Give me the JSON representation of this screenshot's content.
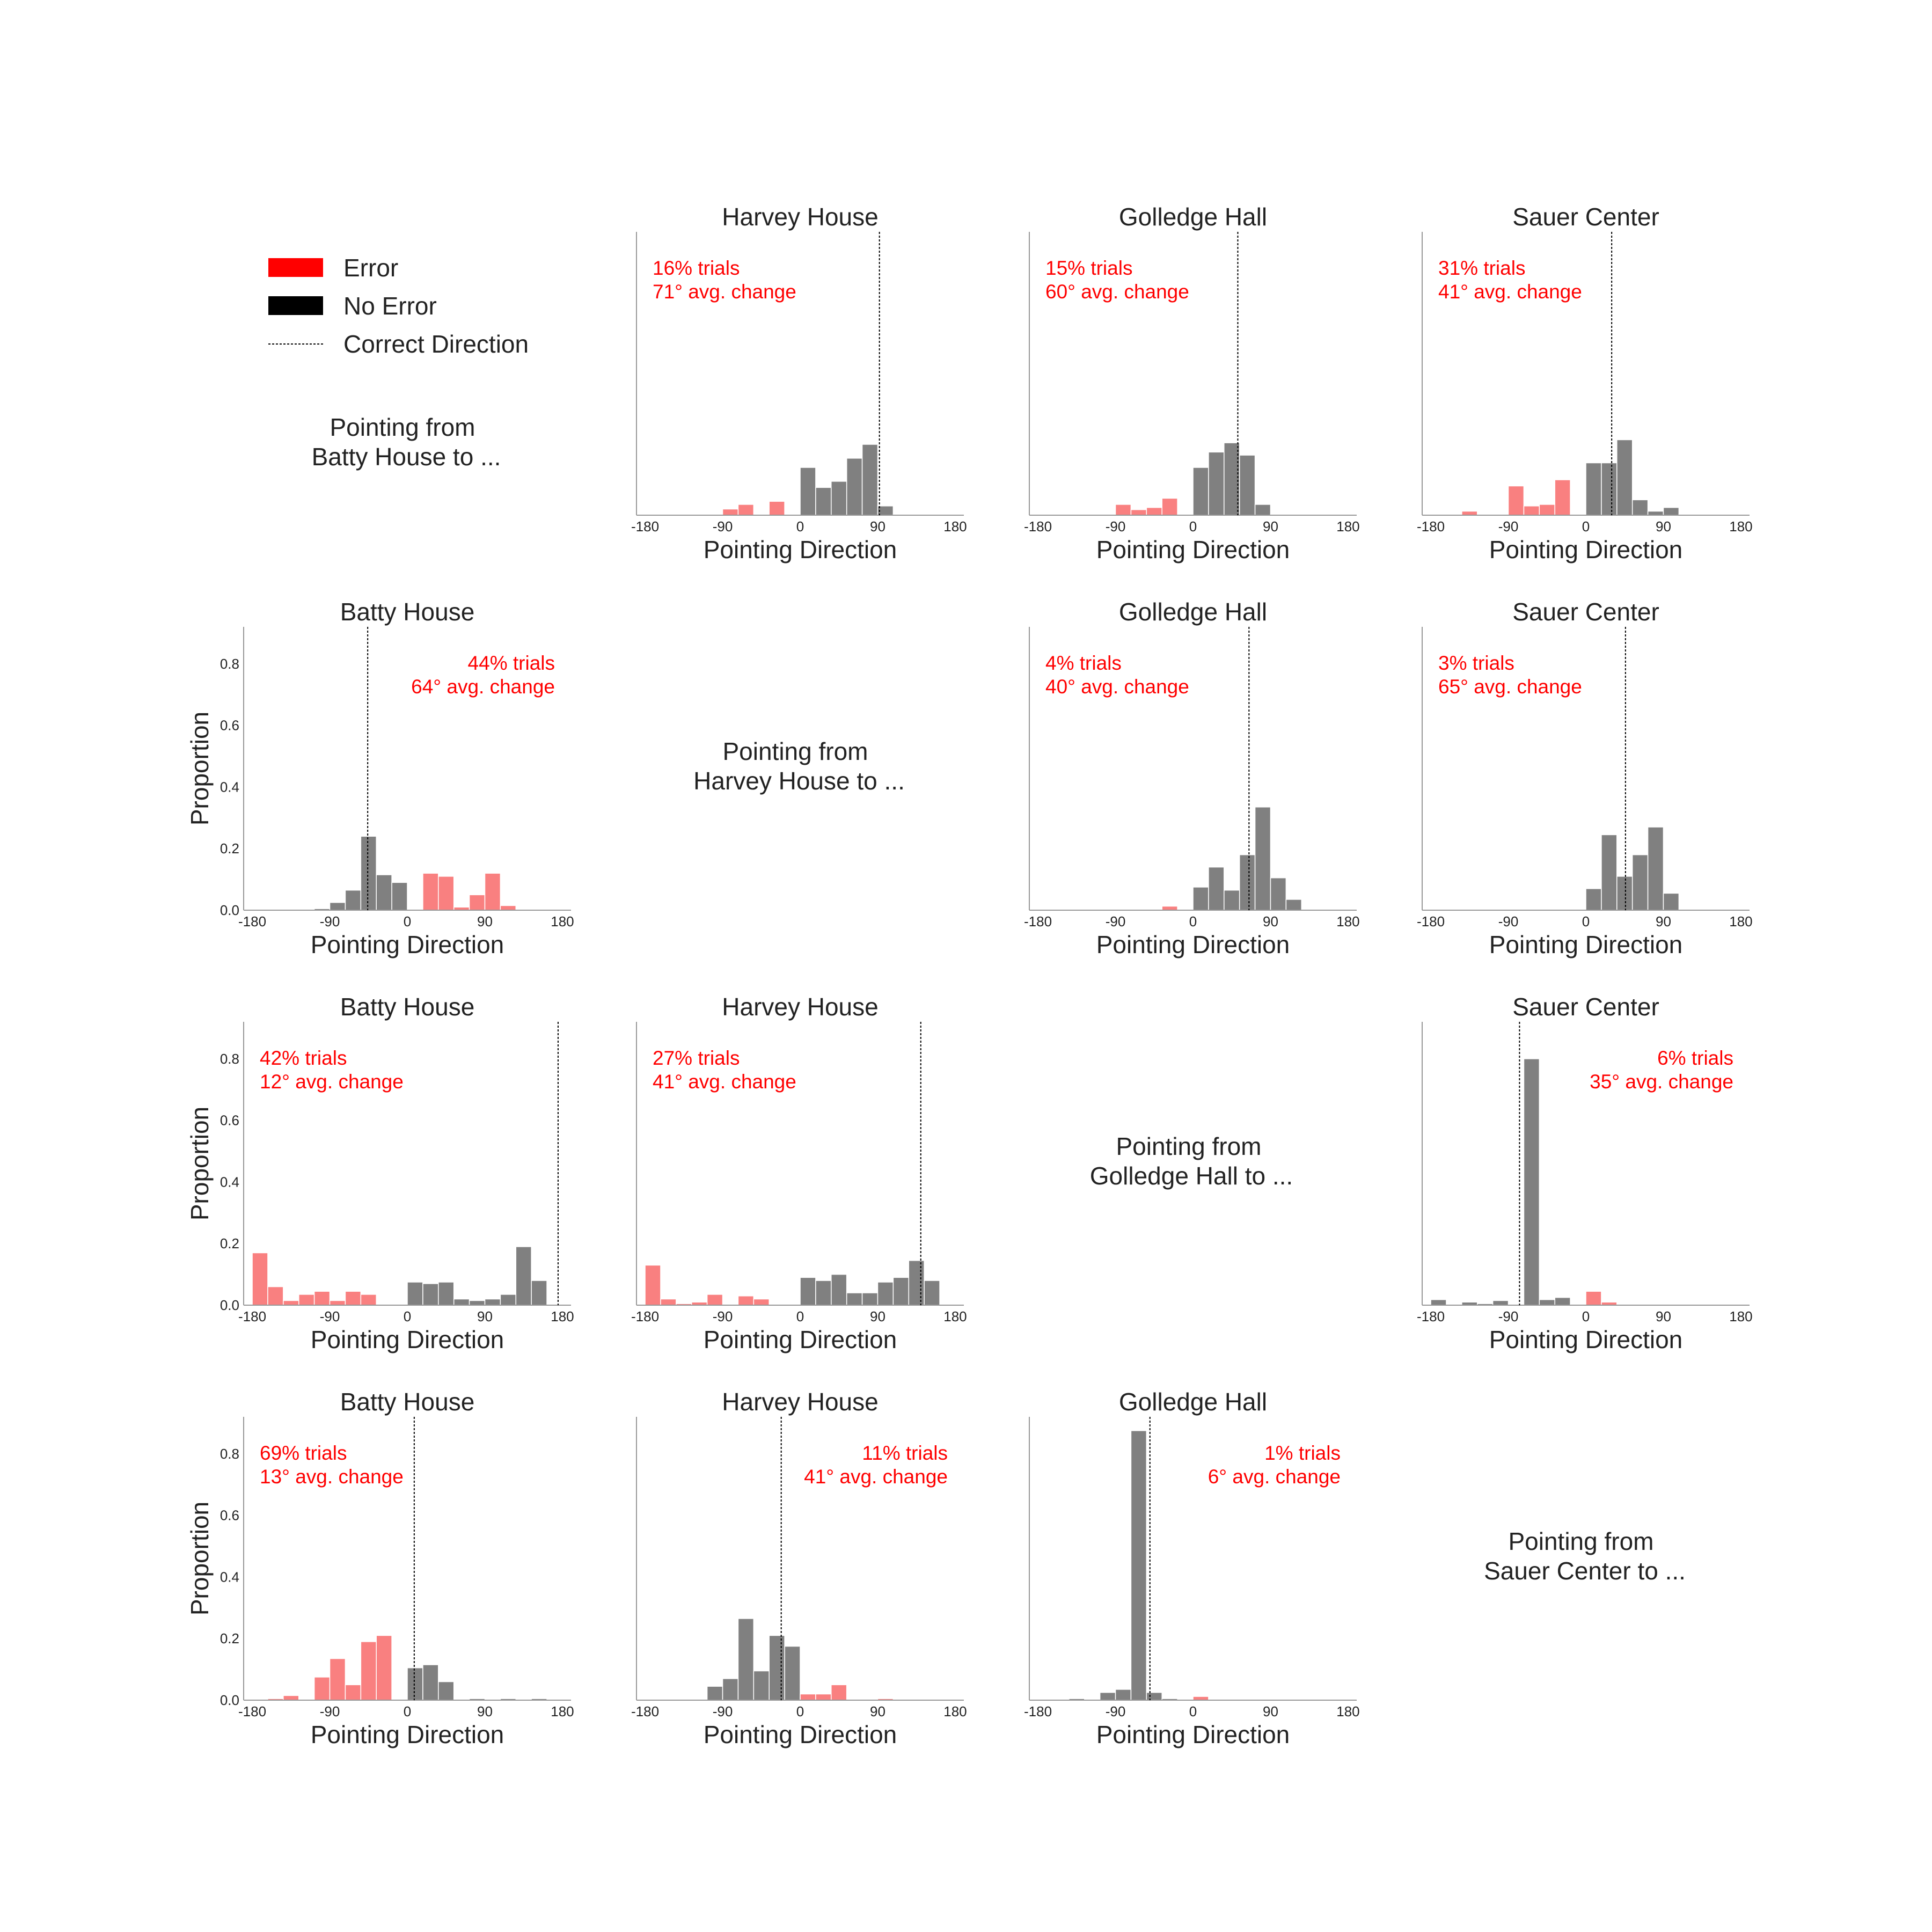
{
  "legend": {
    "items": [
      {
        "label": "Error",
        "kind": "error",
        "color": "#ff0000"
      },
      {
        "label": "No Error",
        "kind": "noerror",
        "color": "#000000"
      },
      {
        "label": "Correct Direction",
        "kind": "line",
        "color": "#000000"
      }
    ]
  },
  "row_labels": [
    [
      "Pointing from",
      "Batty House to ..."
    ],
    [
      "Pointing from",
      "Harvey House to ..."
    ],
    [
      "Pointing from",
      "Golledge Hall to ..."
    ],
    [
      "Pointing from",
      "Sauer Center to ..."
    ]
  ],
  "axes": {
    "xlabel": "Pointing Direction",
    "ylabel": "Proportion",
    "x_ticks": [
      -180,
      -90,
      0,
      90,
      180
    ],
    "y_ticks": [
      "0.0",
      "0.2",
      "0.4",
      "0.6",
      "0.8"
    ],
    "xlim": [
      -190,
      190
    ],
    "ylim": [
      0,
      0.92
    ],
    "bin_edges": [
      -180,
      -162,
      -144,
      -126,
      -108,
      -90,
      -72,
      -54,
      -36,
      -18,
      0,
      18,
      36,
      54,
      72,
      90,
      108,
      126,
      144,
      162,
      180
    ]
  },
  "colors": {
    "error": "#f98080",
    "noerror": "#808080",
    "axis": "#999999",
    "annotation": "#ff0000"
  },
  "chart_data": [
    {
      "type": "bar",
      "row": 0,
      "col": 1,
      "title": "Harvey House",
      "annotation": [
        "16% trials",
        "71° avg. change"
      ],
      "annotation_align": "left",
      "correct_direction": 92,
      "show_yaxis": false,
      "error": [
        0.003,
        0.003,
        0.003,
        0,
        0,
        0.02,
        0.035,
        0,
        0.045,
        0,
        0,
        0,
        0,
        0,
        0,
        0,
        0,
        0,
        0,
        0
      ],
      "noerror": [
        0,
        0,
        0,
        0,
        0,
        0,
        0,
        0,
        0,
        0,
        0.155,
        0.09,
        0.11,
        0.185,
        0.23,
        0.03,
        0.003,
        0.003,
        0,
        0
      ]
    },
    {
      "type": "bar",
      "row": 0,
      "col": 2,
      "title": "Golledge Hall",
      "annotation": [
        "15% trials",
        "60° avg. change"
      ],
      "annotation_align": "left",
      "correct_direction": 52,
      "show_yaxis": false,
      "error": [
        0,
        0,
        0.003,
        0,
        0,
        0.035,
        0.018,
        0.025,
        0.055,
        0,
        0,
        0,
        0,
        0,
        0,
        0,
        0,
        0,
        0,
        0
      ],
      "noerror": [
        0,
        0,
        0,
        0,
        0,
        0,
        0,
        0,
        0,
        0,
        0.155,
        0.205,
        0.235,
        0.195,
        0.035,
        0.003,
        0.003,
        0,
        0,
        0
      ]
    },
    {
      "type": "bar",
      "row": 0,
      "col": 3,
      "title": "Sauer Center",
      "annotation": [
        "31% trials",
        "41° avg. change"
      ],
      "annotation_align": "left",
      "correct_direction": 30,
      "show_yaxis": false,
      "error": [
        0.003,
        0,
        0.013,
        0,
        0,
        0.095,
        0.03,
        0.035,
        0.115,
        0,
        0,
        0,
        0,
        0,
        0,
        0,
        0,
        0,
        0,
        0
      ],
      "noerror": [
        0,
        0,
        0,
        0,
        0,
        0,
        0,
        0,
        0,
        0,
        0.17,
        0.17,
        0.245,
        0.05,
        0.013,
        0.025,
        0.003,
        0.003,
        0,
        0
      ]
    },
    {
      "type": "bar",
      "row": 1,
      "col": 0,
      "title": "Batty House",
      "annotation": [
        "44% trials",
        "64° avg. change"
      ],
      "annotation_align": "right",
      "correct_direction": -46,
      "show_yaxis": true,
      "ylabel": "Proportion",
      "error": [
        0,
        0,
        0,
        0,
        0,
        0,
        0,
        0,
        0,
        0,
        0,
        0.12,
        0.11,
        0.01,
        0.05,
        0.12,
        0.015,
        0,
        0,
        0.002
      ],
      "noerror": [
        0,
        0,
        0.003,
        0,
        0.005,
        0.025,
        0.065,
        0.24,
        0.115,
        0.09,
        0,
        0,
        0,
        0,
        0,
        0,
        0,
        0,
        0,
        0
      ]
    },
    {
      "type": "bar",
      "row": 1,
      "col": 2,
      "title": "Golledge Hall",
      "annotation": [
        "4% trials",
        "40° avg. change"
      ],
      "annotation_align": "left",
      "correct_direction": 65,
      "show_yaxis": false,
      "error": [
        0.003,
        0,
        0,
        0,
        0,
        0,
        0.003,
        0.003,
        0.013,
        0,
        0,
        0,
        0,
        0,
        0,
        0,
        0,
        0,
        0,
        0
      ],
      "noerror": [
        0,
        0,
        0,
        0,
        0,
        0,
        0,
        0,
        0,
        0,
        0.075,
        0.14,
        0.065,
        0.18,
        0.335,
        0.105,
        0.035,
        0.003,
        0,
        0
      ]
    },
    {
      "type": "bar",
      "row": 1,
      "col": 3,
      "title": "Sauer Center",
      "annotation": [
        "3% trials",
        "65° avg. change"
      ],
      "annotation_align": "left",
      "correct_direction": 46,
      "show_yaxis": false,
      "error": [
        0,
        0,
        0.003,
        0,
        0,
        0,
        0.003,
        0.003,
        0.003,
        0,
        0,
        0,
        0,
        0,
        0,
        0,
        0,
        0,
        0,
        0
      ],
      "noerror": [
        0,
        0,
        0,
        0,
        0,
        0,
        0,
        0,
        0,
        0,
        0.07,
        0.245,
        0.11,
        0.18,
        0.27,
        0.055,
        0,
        0.003,
        0.003,
        0
      ]
    },
    {
      "type": "bar",
      "row": 2,
      "col": 0,
      "title": "Batty House",
      "annotation": [
        "42% trials",
        "12° avg. change"
      ],
      "annotation_align": "left",
      "correct_direction": 175,
      "show_yaxis": true,
      "ylabel": "Proportion",
      "error": [
        0.17,
        0.06,
        0.015,
        0.035,
        0.045,
        0.015,
        0.045,
        0.035,
        0,
        0,
        0,
        0,
        0,
        0,
        0,
        0,
        0,
        0,
        0,
        0
      ],
      "noerror": [
        0,
        0,
        0,
        0,
        0,
        0,
        0,
        0,
        0,
        0,
        0.075,
        0.07,
        0.075,
        0.02,
        0.015,
        0.02,
        0.035,
        0.19,
        0.08,
        0
      ]
    },
    {
      "type": "bar",
      "row": 2,
      "col": 1,
      "title": "Harvey House",
      "annotation": [
        "27% trials",
        "41° avg. change"
      ],
      "annotation_align": "left",
      "correct_direction": 140,
      "show_yaxis": false,
      "error": [
        0.13,
        0.02,
        0.005,
        0.01,
        0.035,
        0,
        0.03,
        0.02,
        0,
        0,
        0,
        0,
        0,
        0,
        0,
        0,
        0,
        0,
        0,
        0
      ],
      "noerror": [
        0,
        0,
        0,
        0,
        0,
        0,
        0,
        0,
        0,
        0,
        0.09,
        0.08,
        0.1,
        0.04,
        0.04,
        0.075,
        0.09,
        0.145,
        0.08,
        0
      ]
    },
    {
      "type": "bar",
      "row": 2,
      "col": 3,
      "title": "Sauer Center",
      "annotation": [
        "6% trials",
        "35° avg. change"
      ],
      "annotation_align": "right",
      "correct_direction": -77,
      "show_yaxis": false,
      "error": [
        0,
        0,
        0,
        0,
        0,
        0,
        0,
        0,
        0,
        0,
        0.045,
        0.01,
        0.003,
        0,
        0,
        0,
        0,
        0,
        0,
        0
      ],
      "noerror": [
        0.018,
        0,
        0.01,
        0.005,
        0.015,
        0,
        0.8,
        0.018,
        0.025,
        0.003,
        0,
        0,
        0,
        0,
        0,
        0,
        0,
        0,
        0,
        0
      ]
    },
    {
      "type": "bar",
      "row": 3,
      "col": 0,
      "title": "Batty House",
      "annotation": [
        "69% trials",
        "13° avg. change"
      ],
      "annotation_align": "left",
      "correct_direction": 8,
      "show_yaxis": true,
      "ylabel": "Proportion",
      "error": [
        0,
        0.005,
        0.015,
        0,
        0.075,
        0.135,
        0.05,
        0.19,
        0.21,
        0,
        0,
        0,
        0,
        0,
        0,
        0,
        0,
        0,
        0,
        0
      ],
      "noerror": [
        0,
        0,
        0,
        0,
        0,
        0,
        0,
        0,
        0,
        0,
        0.105,
        0.115,
        0.06,
        0,
        0.005,
        0,
        0.005,
        0,
        0.005,
        0
      ]
    },
    {
      "type": "bar",
      "row": 3,
      "col": 1,
      "title": "Harvey House",
      "annotation": [
        "11% trials",
        "41° avg. change"
      ],
      "annotation_align": "right",
      "correct_direction": -22,
      "show_yaxis": false,
      "error": [
        0,
        0,
        0,
        0,
        0,
        0,
        0,
        0,
        0,
        0,
        0.02,
        0.02,
        0.05,
        0,
        0,
        0.005,
        0,
        0,
        0,
        0
      ],
      "noerror": [
        0,
        0,
        0,
        0,
        0.045,
        0.07,
        0.265,
        0.095,
        0.21,
        0.175,
        0.01,
        0,
        0,
        0,
        0,
        0,
        0,
        0,
        0,
        0
      ]
    },
    {
      "type": "bar",
      "row": 3,
      "col": 2,
      "title": "Golledge Hall",
      "annotation": [
        "1% trials",
        "6° avg. change"
      ],
      "annotation_align": "right",
      "correct_direction": -50,
      "show_yaxis": false,
      "error": [
        0,
        0,
        0,
        0,
        0,
        0,
        0,
        0,
        0,
        0,
        0.012,
        0,
        0,
        0,
        0,
        0,
        0,
        0,
        0,
        0
      ],
      "noerror": [
        0,
        0,
        0.005,
        0,
        0.025,
        0.035,
        0.875,
        0.025,
        0.005,
        0,
        0,
        0,
        0,
        0,
        0,
        0,
        0,
        0,
        0,
        0
      ]
    }
  ]
}
